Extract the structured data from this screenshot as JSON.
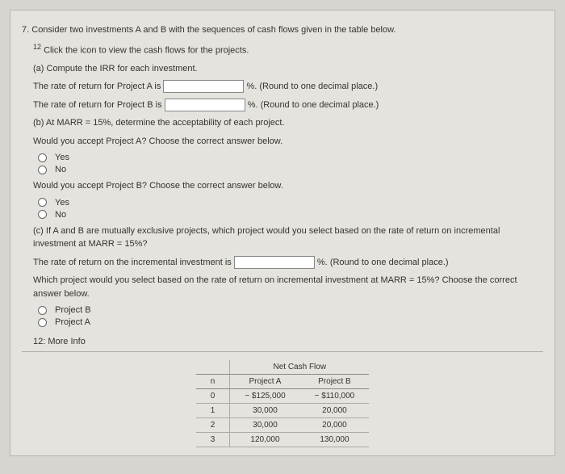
{
  "question": {
    "number": "7.",
    "stem": "Consider two investments A and B with the sequences of cash flows given in the table below.",
    "footnote_mark": "12",
    "footnote_text": "Click the icon to view the cash flows for the projects.",
    "part_a": "(a) Compute the IRR for each investment.",
    "rate_a_label": "The rate of return for Project A is",
    "rate_b_label": "The rate of return for Project B is",
    "round_hint": "%. (Round to one decimal place.)",
    "part_b": "(b) At MARR = 15%, determine the acceptability of each project.",
    "accept_a": "Would you accept Project A? Choose the correct answer below.",
    "accept_b": "Would you accept Project B? Choose the correct answer below.",
    "yes": "Yes",
    "no": "No",
    "part_c": "(c) If A and B are mutually exclusive projects, which project would you select based on the rate of return on incremental investment at MARR = 15%?",
    "inc_rate_label": "The rate of return on the incremental investment is",
    "which_select": "Which project would you select based on the rate of return on incremental investment at MARR = 15%? Choose the correct answer below.",
    "proj_b": "Project B",
    "proj_a": "Project A",
    "more_info": "12: More Info"
  },
  "table": {
    "title": "Net Cash Flow",
    "col_n": "n",
    "col_a": "Project A",
    "col_b": "Project B",
    "rows": [
      {
        "n": "0",
        "a": "− $125,000",
        "b": "− $110,000"
      },
      {
        "n": "1",
        "a": "30,000",
        "b": "20,000"
      },
      {
        "n": "2",
        "a": "30,000",
        "b": "20,000"
      },
      {
        "n": "3",
        "a": "120,000",
        "b": "130,000"
      }
    ]
  }
}
